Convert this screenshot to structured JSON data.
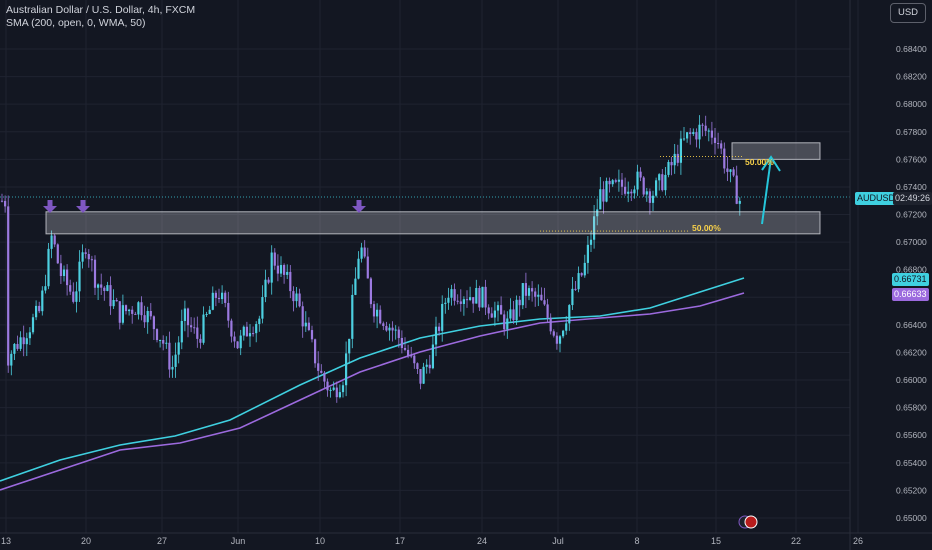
{
  "header": {
    "symbol_title": "Australian Dollar / U.S. Dollar, 4h, FXCM",
    "indicator": "SMA (200, open, 0, WMA, 50)",
    "currency_button": "USD"
  },
  "price_labels": {
    "symbol": "AUDUSD",
    "countdown": "02:49:26",
    "ma_fast_value": "0.66731",
    "ma_slow_value": "0.66633"
  },
  "fib_labels": {
    "upper": "50.00%",
    "lower": "50.00%"
  },
  "colors": {
    "background": "#131722",
    "bull_candle": "#4dd0e1",
    "bear_candle": "#9c7ae0",
    "ma_fast": "#3fd0e0",
    "ma_slow": "#9c6ade",
    "zone_fill": "#d6d9e0",
    "arrow_marker": "#7e57c2",
    "projection_arrow": "#26c6da",
    "fib_line": "#f7d04a"
  },
  "chart_data": {
    "type": "candlestick",
    "title": "Australian Dollar / U.S. Dollar, 4h, FXCM",
    "y_axis_side": "right",
    "ylim": [
      0.6497,
      0.6855
    ],
    "y_ticks": [
      "0.65000",
      "0.65200",
      "0.65400",
      "0.65600",
      "0.65800",
      "0.66000",
      "0.66200",
      "0.66400",
      "0.66600",
      "0.66800",
      "0.67000",
      "0.67200",
      "0.67400",
      "0.67600",
      "0.67800",
      "0.68000",
      "0.68200",
      "0.68400"
    ],
    "x_ticks": [
      "13",
      "20",
      "27",
      "Jun",
      "10",
      "17",
      "24",
      "Jul",
      "8",
      "15",
      "22",
      "26"
    ],
    "close_path": [
      [
        "13",
        0.6615
      ],
      [
        "16",
        0.665
      ],
      [
        "17",
        0.6705
      ],
      [
        "18",
        0.6678
      ],
      [
        "19",
        0.666
      ],
      [
        "20",
        0.67
      ],
      [
        "21",
        0.6672
      ],
      [
        "22",
        0.6662
      ],
      [
        "23",
        0.6648
      ],
      [
        "24",
        0.6655
      ],
      [
        "27",
        0.663
      ],
      [
        "28",
        0.6608
      ],
      [
        "29",
        0.6645
      ],
      [
        "30",
        0.663
      ],
      [
        "31",
        0.6665
      ],
      [
        "Jun",
        0.6625
      ],
      [
        "4",
        0.664
      ],
      [
        "5",
        0.6645
      ],
      [
        "6",
        0.669
      ],
      [
        "7",
        0.666
      ],
      [
        "10",
        0.6605
      ],
      [
        "11",
        0.659
      ],
      [
        "12",
        0.6604
      ],
      [
        "13",
        0.67
      ],
      [
        "14",
        0.6655
      ],
      [
        "17",
        0.663
      ],
      [
        "18",
        0.6615
      ],
      [
        "19",
        0.66
      ],
      [
        "20",
        0.662
      ],
      [
        "21",
        0.6665
      ],
      [
        "24",
        0.666
      ],
      [
        "25",
        0.665
      ],
      [
        "26",
        0.664
      ],
      [
        "27",
        0.6665
      ],
      [
        "28",
        0.6657
      ],
      [
        "Jul",
        0.663
      ],
      [
        "2",
        0.666
      ],
      [
        "3",
        0.668
      ],
      [
        "4",
        0.6735
      ],
      [
        "5",
        0.674
      ],
      [
        "8",
        0.6745
      ],
      [
        "9",
        0.6735
      ],
      [
        "10",
        0.6748
      ],
      [
        "11",
        0.6775
      ],
      [
        "12",
        0.6782
      ],
      [
        "15",
        0.6778
      ],
      [
        "16",
        0.675
      ],
      [
        "17",
        0.673
      ]
    ],
    "moving_averages": [
      {
        "name": "SMA 200",
        "last": 0.66731
      },
      {
        "name": "WMA 50",
        "last": 0.66633
      }
    ],
    "zones": [
      {
        "name": "resistance",
        "from": 0.6706,
        "to": 0.6722
      },
      {
        "name": "target",
        "from": 0.676,
        "to": 0.6772
      }
    ],
    "fib_levels": [
      {
        "label": "50.00%",
        "price": 0.6708
      },
      {
        "label": "50.00%",
        "price": 0.6762
      }
    ],
    "grid": true
  }
}
